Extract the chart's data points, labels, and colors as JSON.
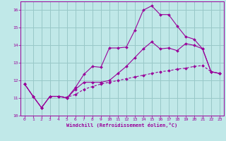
{
  "xlabel": "Windchill (Refroidissement éolien,°C)",
  "xlim": [
    -0.5,
    23.5
  ],
  "ylim": [
    10,
    16.5
  ],
  "yticks": [
    10,
    11,
    12,
    13,
    14,
    15,
    16
  ],
  "xticks": [
    0,
    1,
    2,
    3,
    4,
    5,
    6,
    7,
    8,
    9,
    10,
    11,
    12,
    13,
    14,
    15,
    16,
    17,
    18,
    19,
    20,
    21,
    22,
    23
  ],
  "background_color": "#c0e8e8",
  "grid_color": "#98c8c8",
  "line_color": "#990099",
  "line1_x": [
    0,
    1,
    2,
    3,
    4,
    5,
    6,
    7,
    8,
    9,
    10,
    11,
    12,
    13,
    14,
    15,
    16,
    17,
    18,
    19,
    20,
    21,
    22,
    23
  ],
  "line1_y": [
    11.8,
    11.1,
    10.45,
    11.1,
    11.1,
    11.0,
    11.6,
    12.35,
    12.8,
    12.75,
    13.85,
    13.85,
    13.9,
    14.85,
    16.0,
    16.25,
    15.75,
    15.75,
    15.1,
    14.5,
    14.35,
    13.8,
    12.5,
    12.4
  ],
  "line2_x": [
    0,
    1,
    2,
    3,
    4,
    5,
    6,
    7,
    8,
    9,
    10,
    11,
    12,
    13,
    14,
    15,
    16,
    17,
    18,
    19,
    20,
    21,
    22,
    23
  ],
  "line2_y": [
    11.8,
    11.1,
    10.45,
    11.1,
    11.1,
    11.0,
    11.5,
    11.9,
    11.9,
    11.9,
    12.0,
    12.4,
    12.8,
    13.3,
    13.8,
    14.2,
    13.8,
    13.85,
    13.7,
    14.1,
    14.0,
    13.8,
    12.5,
    12.4
  ],
  "line3_x": [
    0,
    1,
    2,
    3,
    4,
    5,
    6,
    7,
    8,
    9,
    10,
    11,
    12,
    13,
    14,
    15,
    16,
    17,
    18,
    19,
    20,
    21,
    22,
    23
  ],
  "line3_y": [
    11.8,
    11.1,
    10.45,
    11.1,
    11.1,
    11.05,
    11.2,
    11.5,
    11.65,
    11.8,
    11.9,
    12.0,
    12.1,
    12.2,
    12.3,
    12.4,
    12.5,
    12.55,
    12.65,
    12.7,
    12.8,
    12.85,
    12.5,
    12.4
  ]
}
